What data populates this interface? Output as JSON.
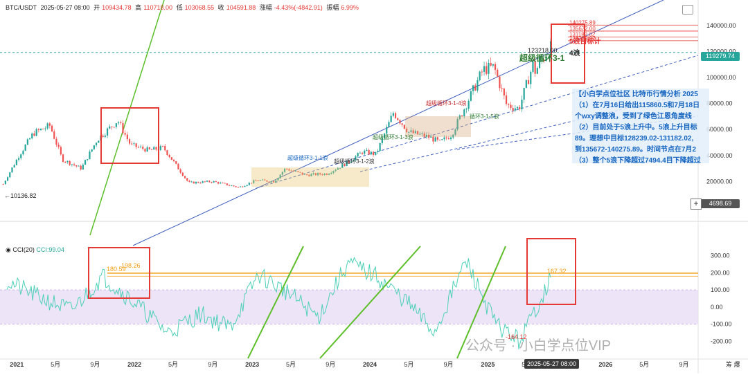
{
  "header": {
    "symbol": "BTC/USDT",
    "datetime": "2025-05-27 08:00",
    "open_label": "开",
    "open": "109434.78",
    "high_label": "高",
    "high": "110718.00",
    "low_label": "低",
    "low": "103068.55",
    "close_label": "收",
    "close": "104591.88",
    "change_label": "涨幅",
    "change": "-4.43%(-4842.91)",
    "amp_label": "振幅",
    "amp": "6.99%"
  },
  "cci_header": {
    "name": "CCI(20)",
    "label": "CCI:",
    "value": "99.04"
  },
  "price_boxes": {
    "current": "119279.74",
    "low": "4698.69"
  },
  "annotation": {
    "lines": [
      "【小白学点位社区 比特币行情分析 2025",
      "（1）在7月16日给出115860.5和7月18日",
      "个wxy调整浪，受到了绿色江恩角度线",
      "（2）目前处于5浪上升中。5浪上升目标",
      "89。理想中目标128239.02-131182.02,",
      "到135672-140275.89。时间节点在7月2",
      "（3）整个5浪下降超过7494.4目下降超过"
    ]
  },
  "watermark": "公众号 · 小白学点位VIP",
  "crosshair_date": "2025-05-27 08:00",
  "corner_label": "筹 爆",
  "wave_labels": {
    "w311": "超级循环3-1-1浪",
    "w312": "超级循环3-1-2浪",
    "w313": "超级循环3-1-3浪",
    "w314": "超级循环3-1-4浪",
    "w315": "循环3-1-5浪",
    "w31": "超级循环3-1",
    "wave4": "4浪",
    "hi_val": "123218.00",
    "tgt": "5浪目标计"
  },
  "colors": {
    "candle_up": "#26a69a",
    "candle_down": "#ef5350",
    "cci_line": "#4dd0b8",
    "cci_band": "#e8def5",
    "trend_green": "#5cbf2a",
    "trend_blue": "#3f5fbf",
    "highlight_red": "#e53935",
    "orange": "#f39c12"
  },
  "chart_data": [
    {
      "type": "candlestick",
      "title": "BTC/USDT",
      "x_ticks": [
        "2021",
        "5月",
        "9月",
        "2022",
        "5月",
        "9月",
        "2023",
        "5月",
        "9月",
        "2024",
        "5月",
        "9月",
        "2025",
        "5月",
        "9月",
        "2026",
        "5月",
        "9月"
      ],
      "y_ticks": [
        20000,
        40000,
        60000,
        80000,
        100000,
        120000,
        140000
      ],
      "ylim": [
        0,
        150000
      ],
      "x": [
        "2020-11-20",
        "2021-01-08",
        "2021-02-21",
        "2021-04-14",
        "2021-05-22",
        "2021-07-20",
        "2021-09-07",
        "2021-11-10",
        "2021-12-20",
        "2022-02-15",
        "2022-04-01",
        "2022-06-18",
        "2022-09-01",
        "2022-11-21",
        "2023-01-15",
        "2023-03-10",
        "2023-04-14",
        "2023-06-15",
        "2023-08-20",
        "2023-10-20",
        "2023-12-10",
        "2024-01-20",
        "2024-03-14",
        "2024-05-01",
        "2024-07-05",
        "2024-08-05",
        "2024-09-10",
        "2024-11-12",
        "2024-12-17",
        "2025-01-20",
        "2025-02-28",
        "2025-04-07",
        "2025-05-22",
        "2025-05-27",
        "2025-07-14",
        "2025-07-20"
      ],
      "close": [
        18000,
        40000,
        57000,
        63000,
        37000,
        30000,
        52000,
        67000,
        48000,
        44000,
        46000,
        19000,
        20000,
        15500,
        21000,
        20000,
        30000,
        25000,
        26000,
        34000,
        43000,
        41000,
        73000,
        58000,
        54000,
        50000,
        56000,
        88000,
        106000,
        108000,
        79000,
        76000,
        111000,
        104591.88,
        123218,
        119279.74
      ],
      "annotations": {
        "low_marker": 10136.82,
        "high_marker": 123218.0
      },
      "targets": [
        128239.02,
        131182.02,
        135672.0,
        140275.89
      ]
    },
    {
      "type": "line",
      "title": "CCI(20)",
      "y_ticks": [
        -200,
        -100,
        0,
        100,
        200,
        300
      ],
      "ylim": [
        -300,
        420
      ],
      "x": [
        "2021-01",
        "2021-04",
        "2021-07",
        "2021-10",
        "2022-01",
        "2022-04",
        "2022-07",
        "2022-10",
        "2023-01",
        "2023-04",
        "2023-07",
        "2023-10",
        "2024-01",
        "2024-04",
        "2024-07",
        "2024-10",
        "2025-01",
        "2025-04",
        "2025-07"
      ],
      "values": [
        150,
        60,
        -20,
        180,
        20,
        -150,
        -40,
        -120,
        190,
        80,
        -60,
        260,
        180,
        30,
        -150,
        270,
        -100,
        -200,
        167
      ],
      "labels": {
        "peak_2021": 180.59,
        "peak_2021b": 198.26,
        "recent": 167.32,
        "low": -164.12
      },
      "bands": [
        -100,
        100
      ]
    }
  ]
}
